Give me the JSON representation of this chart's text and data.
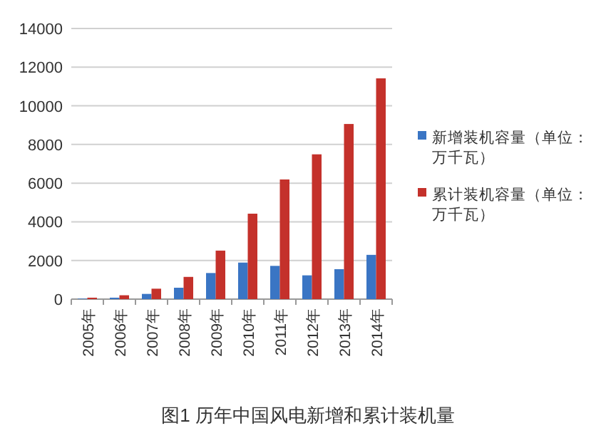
{
  "chart_data": {
    "type": "bar",
    "title": "图1 历年中国风电新增和累计装机量",
    "categories": [
      "2005年",
      "2006年",
      "2007年",
      "2008年",
      "2009年",
      "2010年",
      "2011年",
      "2012年",
      "2013年",
      "2014年"
    ],
    "series": [
      {
        "name": "新增装机容量（单位：万千瓦）",
        "color": "#3a75c4",
        "values": [
          25,
          75,
          270,
          590,
          1350,
          1890,
          1720,
          1230,
          1550,
          2290
        ]
      },
      {
        "name": "累计装机容量（单位：万千瓦）",
        "color": "#c4312b",
        "values": [
          75,
          200,
          540,
          1150,
          2510,
          4420,
          6190,
          7490,
          9060,
          11420
        ]
      }
    ],
    "ylim": [
      0,
      14000
    ],
    "yticks": [
      0,
      2000,
      4000,
      6000,
      8000,
      10000,
      12000,
      14000
    ],
    "grid": "y",
    "legend": "right"
  }
}
